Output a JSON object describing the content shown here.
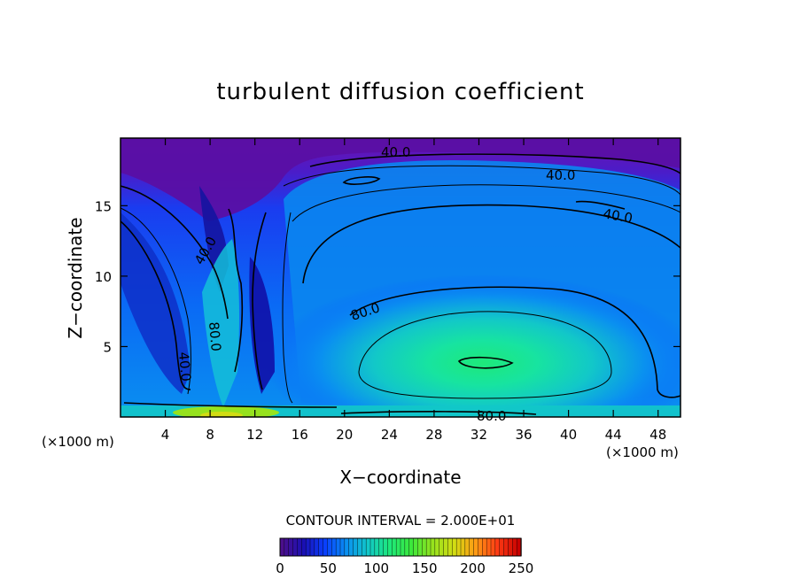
{
  "chart_data": {
    "type": "heatmap",
    "title": "turbulent diffusion coefficient",
    "xlabel": "X−coordinate",
    "ylabel": "Z−coordinate",
    "x_unit_left": "(×1000 m)",
    "x_unit_right": "(×1000 m)",
    "xlim": [
      0,
      50
    ],
    "ylim": [
      0,
      19.8
    ],
    "x_ticks": [
      4,
      8,
      12,
      16,
      20,
      24,
      28,
      32,
      36,
      40,
      44,
      48
    ],
    "y_ticks": [
      5,
      10,
      15
    ],
    "grid": false,
    "contour_interval_text": "CONTOUR INTERVAL = 2.000E+01",
    "contour_labels": [
      "40.0",
      "40.0",
      "40.0",
      "40.0",
      "40.0",
      "80.0",
      "80.0",
      "80.0"
    ],
    "colorbar": {
      "min": 0,
      "max": 250,
      "ticks": [
        0,
        50,
        100,
        150,
        200,
        250
      ],
      "colors": [
        "#4b0f8c",
        "#1a10b4",
        "#0a40ff",
        "#0a90f0",
        "#12c8c8",
        "#1ee87a",
        "#3ce83c",
        "#96e21e",
        "#d2dc14",
        "#ff9a14",
        "#ff3c14",
        "#c80000"
      ]
    }
  }
}
